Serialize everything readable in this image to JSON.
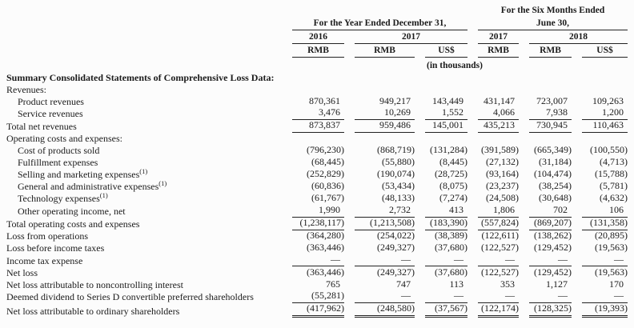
{
  "table": {
    "header": {
      "year_group": "For the Year Ended December 31,",
      "six_months_group_line1": "For the Six Months Ended",
      "six_months_group_line2": "June 30,",
      "year_cols": [
        "2016",
        "2017",
        "2017",
        "2018"
      ],
      "currency_cols": [
        "RMB",
        "RMB",
        "US$",
        "RMB",
        "RMB",
        "US$"
      ],
      "units_note": "(in thousands)"
    },
    "rows": [
      {
        "label": "Summary Consolidated Statements of Comprehensive Loss Data:",
        "bold": true,
        "indent": 0,
        "values": null,
        "line_below": null
      },
      {
        "label": "Revenues:",
        "bold": false,
        "indent": 0,
        "values": null,
        "line_below": null
      },
      {
        "label": "Product revenues",
        "bold": false,
        "indent": 1,
        "values": [
          "870,361",
          "949,217",
          "143,449",
          "431,147",
          "723,007",
          "109,263"
        ],
        "line_below": null
      },
      {
        "label": "Service revenues",
        "bold": false,
        "indent": 1,
        "values": [
          "3,476",
          "10,269",
          "1,552",
          "4,066",
          "7,938",
          "1,200"
        ],
        "line_below": "single"
      },
      {
        "label": "Total net revenues",
        "bold": false,
        "indent": 0,
        "values": [
          "873,837",
          "959,486",
          "145,001",
          "435,213",
          "730,945",
          "110,463"
        ],
        "line_below": "single"
      },
      {
        "label": "Operating costs and expenses:",
        "bold": false,
        "indent": 0,
        "values": null,
        "line_below": null
      },
      {
        "label": "Cost of products sold",
        "bold": false,
        "indent": 1,
        "values": [
          "(796,230)",
          "(868,719)",
          "(131,284)",
          "(391,589)",
          "(665,349)",
          "(100,550)"
        ],
        "line_below": null
      },
      {
        "label": "Fulfillment expenses",
        "bold": false,
        "indent": 1,
        "values": [
          "(68,445)",
          "(55,880)",
          "(8,445)",
          "(27,132)",
          "(31,184)",
          "(4,713)"
        ],
        "line_below": null
      },
      {
        "label": "Selling and marketing expenses",
        "sup": "(1)",
        "bold": false,
        "indent": 1,
        "values": [
          "(252,829)",
          "(190,074)",
          "(28,725)",
          "(93,164)",
          "(104,474)",
          "(15,788)"
        ],
        "line_below": null
      },
      {
        "label": "General and administrative expenses",
        "sup": "(1)",
        "bold": false,
        "indent": 1,
        "values": [
          "(60,836)",
          "(53,434)",
          "(8,075)",
          "(23,237)",
          "(38,254)",
          "(5,781)"
        ],
        "line_below": null
      },
      {
        "label": "Technology expenses",
        "sup": "(1)",
        "bold": false,
        "indent": 1,
        "values": [
          "(61,767)",
          "(48,133)",
          "(7,274)",
          "(24,508)",
          "(30,648)",
          "(4,632)"
        ],
        "line_below": null
      },
      {
        "label": "Other operating income, net",
        "bold": false,
        "indent": 1,
        "values": [
          "1,990",
          "2,732",
          "413",
          "1,806",
          "702",
          "106"
        ],
        "line_below": "single"
      },
      {
        "label": "Total operating costs and expenses",
        "bold": false,
        "indent": 0,
        "values": [
          "(1,238,117)",
          "(1,213,508)",
          "(183,390)",
          "(557,824)",
          "(869,207)",
          "(131,358)"
        ],
        "line_below": "single"
      },
      {
        "label": "Loss from operations",
        "bold": false,
        "indent": 0,
        "values": [
          "(364,280)",
          "(254,022)",
          "(38,389)",
          "(122,611)",
          "(138,262)",
          "(20,895)"
        ],
        "line_below": null
      },
      {
        "label": "Loss before income taxes",
        "bold": false,
        "indent": 0,
        "values": [
          "(363,446)",
          "(249,327)",
          "(37,680)",
          "(122,527)",
          "(129,452)",
          "(19,563)"
        ],
        "line_below": null
      },
      {
        "label": "Income tax expense",
        "bold": false,
        "indent": 0,
        "values": [
          "—",
          "—",
          "—",
          "—",
          "—",
          "—"
        ],
        "line_below": "single"
      },
      {
        "label": "Net loss",
        "bold": false,
        "indent": 0,
        "values": [
          "(363,446)",
          "(249,327)",
          "(37,680)",
          "(122,527)",
          "(129,452)",
          "(19,563)"
        ],
        "line_below": null
      },
      {
        "label": "Net loss attributable to noncontrolling interest",
        "bold": false,
        "indent": 0,
        "values": [
          "765",
          "747",
          "113",
          "353",
          "1,127",
          "170"
        ],
        "line_below": null
      },
      {
        "label": "Deemed dividend to Series D convertible preferred shareholders",
        "bold": false,
        "indent": 0,
        "values": [
          "(55,281)",
          "—",
          "—",
          "—",
          "—",
          "—"
        ],
        "line_below": "single"
      },
      {
        "label": "Net loss attributable to ordinary shareholders",
        "bold": false,
        "indent": 0,
        "values": [
          "(417,962)",
          "(248,580)",
          "(37,567)",
          "(122,174)",
          "(128,325)",
          "(19,393)"
        ],
        "line_below": "double"
      }
    ]
  }
}
